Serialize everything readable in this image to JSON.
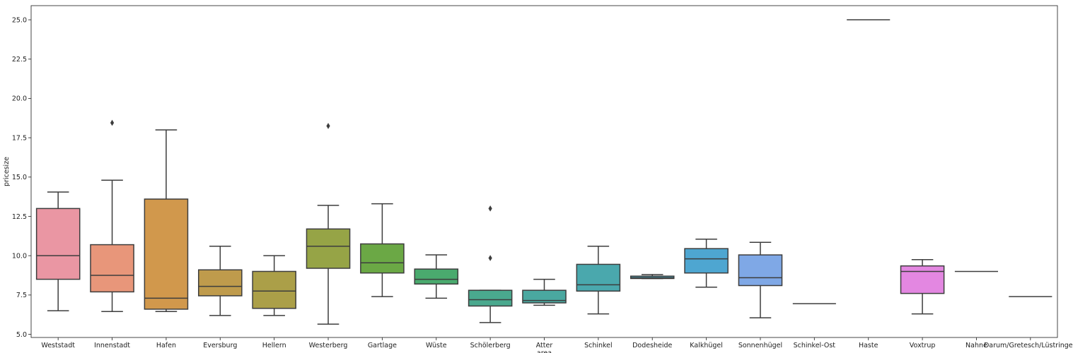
{
  "chart_data": {
    "type": "boxplot",
    "xlabel": "area",
    "ylabel": "pricesize",
    "ylim": [
      4.8,
      25.9
    ],
    "yticks": [
      5.0,
      7.5,
      10.0,
      12.5,
      15.0,
      17.5,
      20.0,
      22.5,
      25.0
    ],
    "ytick_labels": [
      "5.0",
      "7.5",
      "10.0",
      "12.5",
      "15.0",
      "17.5",
      "20.0",
      "22.5",
      "25.0"
    ],
    "grid": false,
    "categories": [
      "Weststadt",
      "Innenstadt",
      "Hafen",
      "Eversburg",
      "Hellern",
      "Westerberg",
      "Gartlage",
      "Wüste",
      "Schölerberg",
      "Atter",
      "Schinkel",
      "Dodesheide",
      "Kalkhügel",
      "Sonnenhügel",
      "Schinkel-Ost",
      "Haste",
      "Voxtrup",
      "Nahne",
      "Darum/Gretesch/Lüstringen"
    ],
    "boxes": [
      {
        "whislo": 6.5,
        "q1": 8.5,
        "med": 10.0,
        "q3": 13.0,
        "whishi": 14.05,
        "fliers": [],
        "color": "#ea96a3"
      },
      {
        "whislo": 6.45,
        "q1": 7.7,
        "med": 8.75,
        "q3": 10.7,
        "whishi": 14.8,
        "fliers": [
          18.45
        ],
        "color": "#e8967a"
      },
      {
        "whislo": 6.45,
        "q1": 6.6,
        "med": 7.3,
        "q3": 13.6,
        "whishi": 18.0,
        "fliers": [],
        "color": "#d1984c"
      },
      {
        "whislo": 6.2,
        "q1": 7.45,
        "med": 8.05,
        "q3": 9.1,
        "whishi": 10.6,
        "fliers": [],
        "color": "#bf9b4c"
      },
      {
        "whislo": 6.2,
        "q1": 6.65,
        "med": 7.75,
        "q3": 9.0,
        "whishi": 10.0,
        "fliers": [],
        "color": "#ab9f48"
      },
      {
        "whislo": 5.65,
        "q1": 9.2,
        "med": 10.6,
        "q3": 11.7,
        "whishi": 13.2,
        "fliers": [
          18.25
        ],
        "color": "#96a446"
      },
      {
        "whislo": 7.4,
        "q1": 8.9,
        "med": 9.55,
        "q3": 10.75,
        "whishi": 13.3,
        "fliers": [],
        "color": "#6ba845"
      },
      {
        "whislo": 7.3,
        "q1": 8.2,
        "med": 8.5,
        "q3": 9.15,
        "whishi": 10.05,
        "fliers": [],
        "color": "#4aaa6e"
      },
      {
        "whislo": 5.75,
        "q1": 6.8,
        "med": 7.2,
        "q3": 7.8,
        "whishi": 7.8,
        "fliers": [
          9.85,
          13.0
        ],
        "color": "#4aa98e"
      },
      {
        "whislo": 6.85,
        "q1": 7.0,
        "med": 7.15,
        "q3": 7.8,
        "whishi": 8.5,
        "fliers": [],
        "color": "#4aa8a0"
      },
      {
        "whislo": 6.3,
        "q1": 7.75,
        "med": 8.15,
        "q3": 9.45,
        "whishi": 10.6,
        "fliers": [],
        "color": "#4aa8ad"
      },
      {
        "whislo": 8.55,
        "q1": 8.55,
        "med": 8.6,
        "q3": 8.7,
        "whishi": 8.8,
        "fliers": [],
        "color": "#4ca8bf"
      },
      {
        "whislo": 8.0,
        "q1": 8.9,
        "med": 9.8,
        "q3": 10.45,
        "whishi": 11.05,
        "fliers": [],
        "color": "#4ea6d1"
      },
      {
        "whislo": 6.05,
        "q1": 8.1,
        "med": 8.6,
        "q3": 10.05,
        "whishi": 10.85,
        "fliers": [],
        "color": "#7fa8e6"
      },
      {
        "whislo": 6.95,
        "q1": 6.95,
        "med": 6.95,
        "q3": 6.95,
        "whishi": 6.95,
        "fliers": [],
        "color": "#a7a0ea"
      },
      {
        "whislo": 25.0,
        "q1": 25.0,
        "med": 25.0,
        "q3": 25.0,
        "whishi": 25.0,
        "fliers": [],
        "color": "#c99aea"
      },
      {
        "whislo": 6.3,
        "q1": 7.6,
        "med": 9.0,
        "q3": 9.35,
        "whishi": 9.75,
        "fliers": [],
        "color": "#e387e1"
      },
      {
        "whislo": 9.0,
        "q1": 9.0,
        "med": 9.0,
        "q3": 9.0,
        "whishi": 9.0,
        "fliers": [],
        "color": "#e88fc9"
      },
      {
        "whislo": 7.4,
        "q1": 7.4,
        "med": 7.4,
        "q3": 7.4,
        "whishi": 7.4,
        "fliers": [],
        "color": "#e993b8"
      }
    ]
  }
}
